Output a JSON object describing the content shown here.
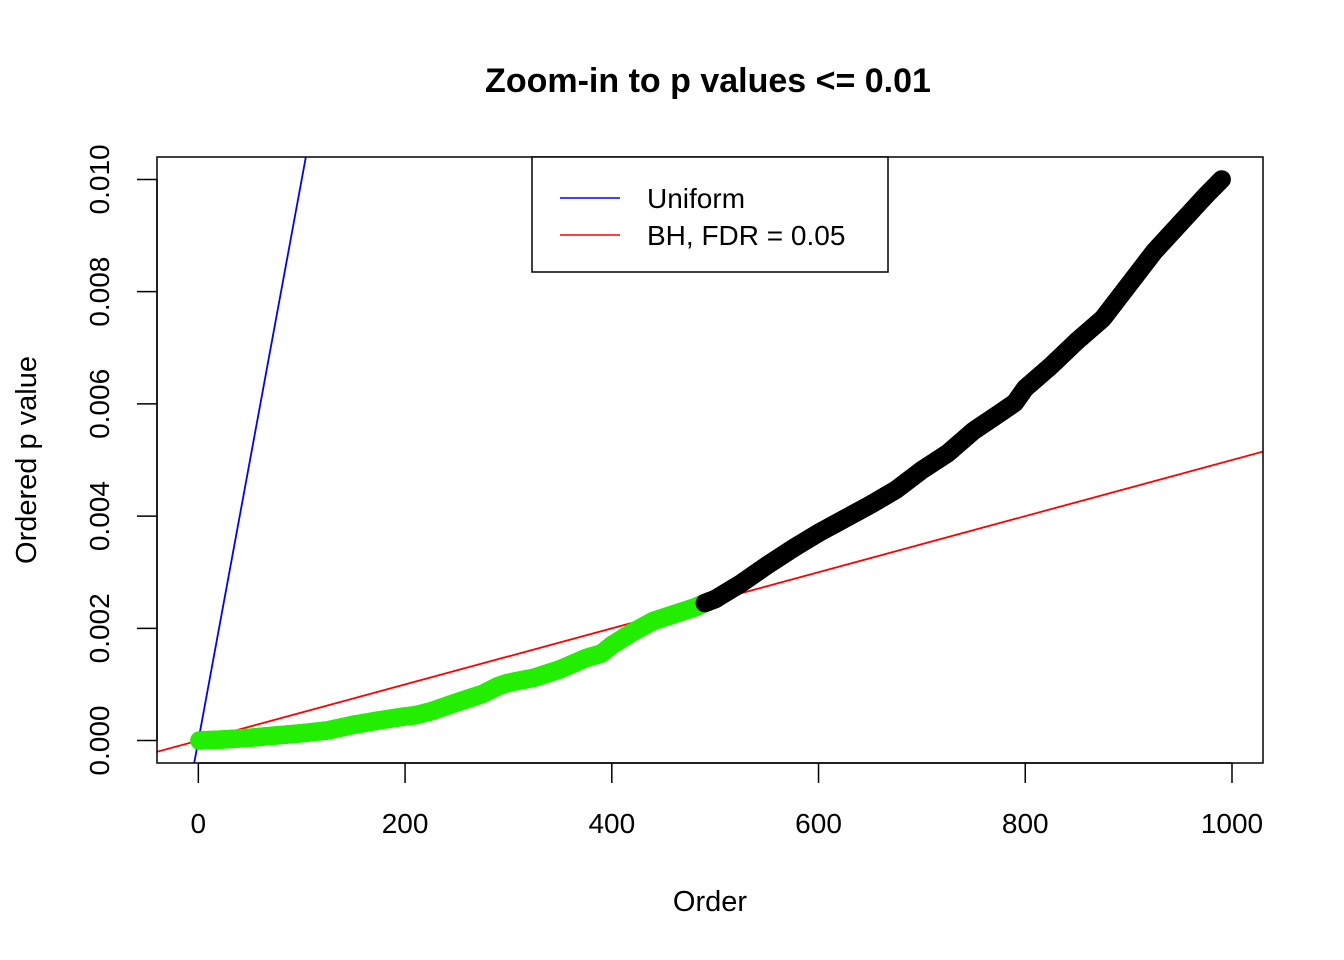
{
  "chart_data": {
    "type": "scatter",
    "title": "Zoom-in to p values <= 0.01",
    "xlabel": "Order",
    "ylabel": "Ordered p value",
    "xlim": [
      -40,
      1030
    ],
    "ylim": [
      -0.0004,
      0.0104
    ],
    "x_ticks": [
      0,
      200,
      400,
      600,
      800,
      1000
    ],
    "x_tick_labels": [
      "0",
      "200",
      "400",
      "600",
      "800",
      "1000"
    ],
    "y_ticks": [
      0.0,
      0.002,
      0.004,
      0.006,
      0.008,
      0.01
    ],
    "y_tick_labels": [
      "0.000",
      "0.002",
      "0.004",
      "0.006",
      "0.008",
      "0.010"
    ],
    "grid": false,
    "legend": {
      "position": "top",
      "entries": [
        {
          "label": "Uniform",
          "color": "#0000ff"
        },
        {
          "label": "BH, FDR = 0.05",
          "color": "#ff0000"
        }
      ]
    },
    "lines": [
      {
        "name": "Uniform",
        "color": "#0000ff",
        "slope": 0.0001,
        "intercept": 0
      },
      {
        "name": "BH, FDR = 0.05",
        "color": "#ff0000",
        "slope": 5e-06,
        "intercept": 0
      }
    ],
    "series": [
      {
        "color": "#22ee00",
        "x": [
          1,
          25,
          50,
          75,
          100,
          125,
          150,
          175,
          200,
          210,
          225,
          250,
          275,
          290,
          300,
          325,
          350,
          375,
          390,
          400,
          420,
          440,
          460,
          480,
          490
        ],
        "y": [
          0.0,
          2e-05,
          5e-05,
          9e-05,
          0.00013,
          0.00018,
          0.00028,
          0.00036,
          0.00043,
          0.00045,
          0.00052,
          0.00068,
          0.00083,
          0.00097,
          0.00103,
          0.00112,
          0.00127,
          0.00147,
          0.00155,
          0.0017,
          0.00193,
          0.00213,
          0.00225,
          0.00237,
          0.00245
        ]
      },
      {
        "color": "#000000",
        "x": [
          490,
          500,
          525,
          550,
          575,
          600,
          625,
          650,
          675,
          700,
          725,
          750,
          775,
          790,
          800,
          825,
          850,
          875,
          900,
          925,
          950,
          975,
          990
        ],
        "y": [
          0.00245,
          0.00252,
          0.0028,
          0.00312,
          0.00342,
          0.0037,
          0.00395,
          0.0042,
          0.00447,
          0.00482,
          0.00512,
          0.00552,
          0.00583,
          0.00602,
          0.00628,
          0.00668,
          0.00712,
          0.00752,
          0.00812,
          0.00872,
          0.00922,
          0.00972,
          0.01
        ]
      }
    ]
  }
}
